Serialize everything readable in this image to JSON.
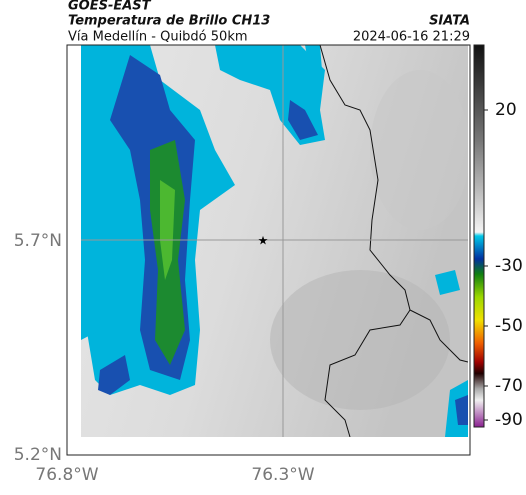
{
  "header": {
    "satellite": "GOES-EAST",
    "product": "Temperatura de Brillo CH13",
    "region": "Vía Medellín - Quibdó 50km",
    "source": "SIATA",
    "datetime": "2024-06-16 21:29"
  },
  "axes": {
    "lat_ticks": [
      "5.7°N",
      "5.2°N"
    ],
    "lon_ticks": [
      "76.8°W",
      "76.3°W"
    ]
  },
  "colorbar": {
    "ticks": [
      20,
      -30,
      -50,
      -70,
      -90
    ]
  }
}
